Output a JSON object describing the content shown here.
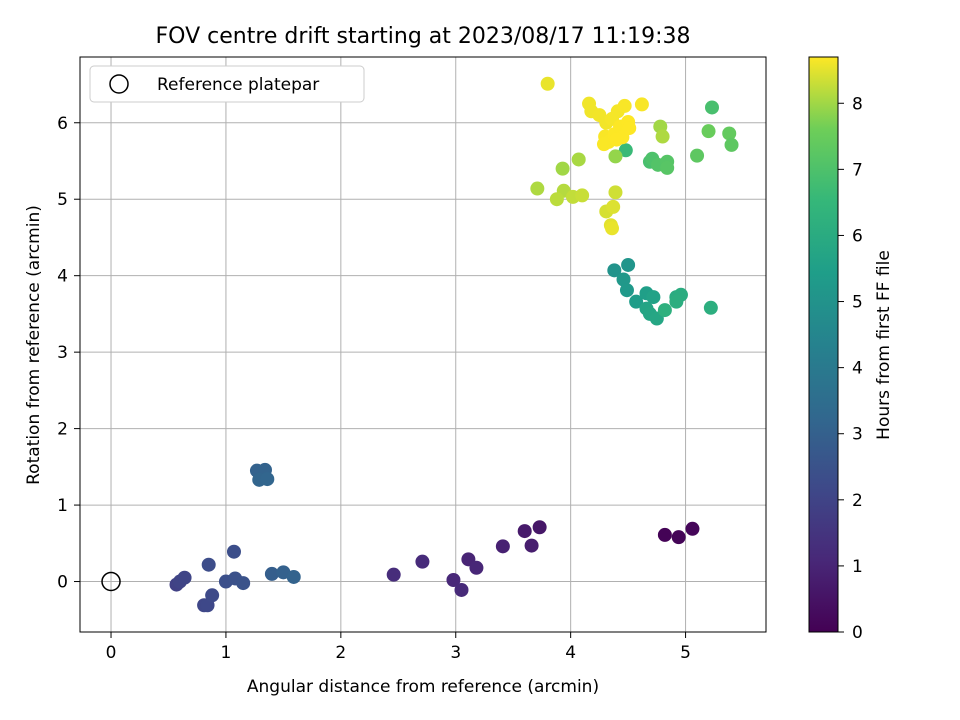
{
  "chart_data": {
    "type": "scatter",
    "title": "FOV centre drift starting at 2023/08/17 11:19:38",
    "xlabel": "Angular distance from reference (arcmin)",
    "ylabel": "Rotation from reference (arcmin)",
    "xlim": [
      -0.27,
      5.7
    ],
    "ylim": [
      -0.66,
      6.86
    ],
    "xticks": [
      0,
      1,
      2,
      3,
      4,
      5
    ],
    "yticks": [
      0,
      1,
      2,
      3,
      4,
      5,
      6
    ],
    "grid": true,
    "legend": {
      "placement": "upper-left",
      "entries": [
        "Reference platepar"
      ]
    },
    "reference_point": {
      "x": 0,
      "y": 0,
      "marker": "hollow-circle"
    },
    "colorbar": {
      "label": "Hours from first FF file",
      "colormap": "viridis",
      "range": [
        0,
        8.7
      ],
      "ticks": [
        0,
        1,
        2,
        3,
        4,
        5,
        6,
        7,
        8
      ]
    },
    "points": [
      {
        "x": 4.82,
        "y": 0.61,
        "c": 0.05
      },
      {
        "x": 4.94,
        "y": 0.58,
        "c": 0.1
      },
      {
        "x": 5.06,
        "y": 0.69,
        "c": 0.15
      },
      {
        "x": 3.73,
        "y": 0.71,
        "c": 0.6
      },
      {
        "x": 3.6,
        "y": 0.66,
        "c": 0.7
      },
      {
        "x": 3.66,
        "y": 0.47,
        "c": 0.8
      },
      {
        "x": 3.41,
        "y": 0.46,
        "c": 0.9
      },
      {
        "x": 3.11,
        "y": 0.29,
        "c": 1.0
      },
      {
        "x": 3.18,
        "y": 0.18,
        "c": 1.05
      },
      {
        "x": 2.98,
        "y": 0.02,
        "c": 1.1
      },
      {
        "x": 3.05,
        "y": -0.11,
        "c": 1.15
      },
      {
        "x": 2.71,
        "y": 0.26,
        "c": 1.2
      },
      {
        "x": 2.46,
        "y": 0.09,
        "c": 1.25
      },
      {
        "x": 0.57,
        "y": -0.04,
        "c": 1.9
      },
      {
        "x": 0.6,
        "y": 0.0,
        "c": 2.0
      },
      {
        "x": 0.64,
        "y": 0.05,
        "c": 2.05
      },
      {
        "x": 0.81,
        "y": -0.31,
        "c": 2.1
      },
      {
        "x": 0.84,
        "y": -0.31,
        "c": 2.15
      },
      {
        "x": 0.88,
        "y": -0.18,
        "c": 2.2
      },
      {
        "x": 0.85,
        "y": 0.22,
        "c": 2.3
      },
      {
        "x": 1.0,
        "y": 0.0,
        "c": 2.4
      },
      {
        "x": 1.08,
        "y": 0.04,
        "c": 2.45
      },
      {
        "x": 1.15,
        "y": -0.02,
        "c": 2.5
      },
      {
        "x": 1.07,
        "y": 0.39,
        "c": 2.35
      },
      {
        "x": 1.4,
        "y": 0.1,
        "c": 2.9
      },
      {
        "x": 1.5,
        "y": 0.12,
        "c": 3.0
      },
      {
        "x": 1.59,
        "y": 0.06,
        "c": 3.1
      },
      {
        "x": 1.27,
        "y": 1.45,
        "c": 3.05
      },
      {
        "x": 1.34,
        "y": 1.46,
        "c": 3.1
      },
      {
        "x": 1.29,
        "y": 1.33,
        "c": 3.15
      },
      {
        "x": 1.36,
        "y": 1.34,
        "c": 3.2
      },
      {
        "x": 4.38,
        "y": 4.07,
        "c": 5.0
      },
      {
        "x": 4.5,
        "y": 4.14,
        "c": 5.1
      },
      {
        "x": 4.46,
        "y": 3.95,
        "c": 5.2
      },
      {
        "x": 4.49,
        "y": 3.81,
        "c": 5.25
      },
      {
        "x": 4.57,
        "y": 3.66,
        "c": 5.4
      },
      {
        "x": 4.66,
        "y": 3.77,
        "c": 5.5
      },
      {
        "x": 4.72,
        "y": 3.72,
        "c": 5.6
      },
      {
        "x": 4.66,
        "y": 3.57,
        "c": 5.7
      },
      {
        "x": 4.69,
        "y": 3.5,
        "c": 5.75
      },
      {
        "x": 4.75,
        "y": 3.44,
        "c": 5.8
      },
      {
        "x": 4.82,
        "y": 3.55,
        "c": 6.2
      },
      {
        "x": 4.92,
        "y": 3.72,
        "c": 6.0
      },
      {
        "x": 4.96,
        "y": 3.75,
        "c": 6.05
      },
      {
        "x": 4.92,
        "y": 3.66,
        "c": 6.1
      },
      {
        "x": 5.22,
        "y": 3.58,
        "c": 6.15
      },
      {
        "x": 4.48,
        "y": 5.64,
        "c": 6.6
      },
      {
        "x": 4.69,
        "y": 5.49,
        "c": 6.9
      },
      {
        "x": 4.71,
        "y": 5.53,
        "c": 7.0
      },
      {
        "x": 4.76,
        "y": 5.45,
        "c": 7.1
      },
      {
        "x": 4.84,
        "y": 5.49,
        "c": 7.15
      },
      {
        "x": 4.84,
        "y": 5.41,
        "c": 7.2
      },
      {
        "x": 5.1,
        "y": 5.57,
        "c": 7.3
      },
      {
        "x": 5.23,
        "y": 6.2,
        "c": 6.9
      },
      {
        "x": 5.2,
        "y": 5.89,
        "c": 7.5
      },
      {
        "x": 5.38,
        "y": 5.86,
        "c": 7.4
      },
      {
        "x": 5.4,
        "y": 5.71,
        "c": 7.3
      },
      {
        "x": 4.39,
        "y": 5.56,
        "c": 7.9
      },
      {
        "x": 4.78,
        "y": 5.95,
        "c": 8.0
      },
      {
        "x": 4.8,
        "y": 5.82,
        "c": 8.1
      },
      {
        "x": 3.93,
        "y": 5.4,
        "c": 8.0
      },
      {
        "x": 4.07,
        "y": 5.52,
        "c": 8.05
      },
      {
        "x": 3.71,
        "y": 5.14,
        "c": 8.1
      },
      {
        "x": 3.94,
        "y": 5.11,
        "c": 8.15
      },
      {
        "x": 3.88,
        "y": 5.0,
        "c": 8.2
      },
      {
        "x": 4.02,
        "y": 5.03,
        "c": 8.25
      },
      {
        "x": 4.1,
        "y": 5.05,
        "c": 8.3
      },
      {
        "x": 4.39,
        "y": 5.09,
        "c": 8.35
      },
      {
        "x": 4.31,
        "y": 4.84,
        "c": 8.4
      },
      {
        "x": 4.37,
        "y": 4.9,
        "c": 8.45
      },
      {
        "x": 4.35,
        "y": 4.66,
        "c": 8.5
      },
      {
        "x": 4.36,
        "y": 4.62,
        "c": 8.55
      },
      {
        "x": 3.8,
        "y": 6.51,
        "c": 8.55
      },
      {
        "x": 4.16,
        "y": 6.25,
        "c": 8.6
      },
      {
        "x": 4.18,
        "y": 6.15,
        "c": 8.6
      },
      {
        "x": 4.25,
        "y": 6.1,
        "c": 8.62
      },
      {
        "x": 4.31,
        "y": 6.0,
        "c": 8.62
      },
      {
        "x": 4.36,
        "y": 6.05,
        "c": 8.64
      },
      {
        "x": 4.41,
        "y": 6.15,
        "c": 8.64
      },
      {
        "x": 4.47,
        "y": 6.22,
        "c": 8.66
      },
      {
        "x": 4.62,
        "y": 6.24,
        "c": 8.66
      },
      {
        "x": 4.3,
        "y": 5.82,
        "c": 8.67
      },
      {
        "x": 4.33,
        "y": 5.75,
        "c": 8.68
      },
      {
        "x": 4.29,
        "y": 5.72,
        "c": 8.68
      },
      {
        "x": 4.38,
        "y": 5.85,
        "c": 8.69
      },
      {
        "x": 4.43,
        "y": 5.95,
        "c": 8.69
      },
      {
        "x": 4.45,
        "y": 5.81,
        "c": 8.7
      },
      {
        "x": 4.4,
        "y": 5.78,
        "c": 8.7
      },
      {
        "x": 4.5,
        "y": 6.01,
        "c": 8.7
      },
      {
        "x": 4.51,
        "y": 5.93,
        "c": 8.7
      }
    ]
  }
}
